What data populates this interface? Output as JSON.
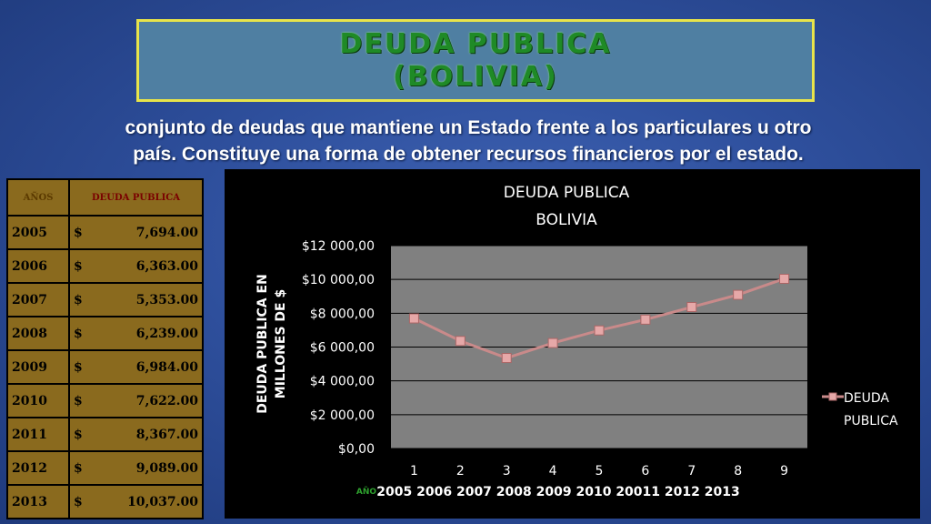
{
  "header": {
    "title_line1": "DEUDA PUBLICA",
    "title_line2": "(BOLIVIA)"
  },
  "description": {
    "line1": "conjunto de deudas que mantiene un Estado frente a los particulares u otro",
    "line2": "país. Constituye una forma de obtener recursos financieros por el estado."
  },
  "table": {
    "headers": [
      "AÑOS",
      "DEUDA PUBLICA"
    ],
    "rows": [
      {
        "year": "2005",
        "currency": "$",
        "amount": "7,694.00"
      },
      {
        "year": "2006",
        "currency": "$",
        "amount": "6,363.00"
      },
      {
        "year": "2007",
        "currency": "$",
        "amount": "5,353.00"
      },
      {
        "year": "2008",
        "currency": "$",
        "amount": "6,239.00"
      },
      {
        "year": "2009",
        "currency": "$",
        "amount": "6,984.00"
      },
      {
        "year": "2010",
        "currency": "$",
        "amount": "7,622.00"
      },
      {
        "year": "2011",
        "currency": "$",
        "amount": "8,367.00"
      },
      {
        "year": "2012",
        "currency": "$",
        "amount": "9,089.00"
      },
      {
        "year": "2013",
        "currency": "$",
        "amount": "10,037.00"
      }
    ]
  },
  "chart_data": {
    "type": "line",
    "title": "DEUDA PUBLICA",
    "subtitle": "BOLIVIA",
    "ylabel_line1": "DEUDA PUBLICA EN",
    "ylabel_line2": "MILLONES DE $",
    "xlabel": "AÑO",
    "x": [
      1,
      2,
      3,
      4,
      5,
      6,
      7,
      8,
      9
    ],
    "x_tick_labels": [
      "1",
      "2",
      "3",
      "4",
      "5",
      "6",
      "7",
      "8",
      "9"
    ],
    "x_category_labels": "2005 2006 2007 2008 2009 2010 20011 2012 2013",
    "y_tick_labels": [
      "$0,00",
      "$2 000,00",
      "$4 000,00",
      "$6 000,00",
      "$8 000,00",
      "$10 000,00",
      "$12 000,00"
    ],
    "ylim": [
      0,
      12000
    ],
    "grid": true,
    "legend_position": "right",
    "series": [
      {
        "name_line1": "DEUDA",
        "name_line2": "PUBLICA",
        "values": [
          7694,
          6363,
          5353,
          6239,
          6984,
          7622,
          8367,
          9089,
          10037
        ]
      }
    ],
    "colors": {
      "line": "#c98a8a",
      "marker": "#e6a8a8",
      "plot_bg": "#808080",
      "grid": "#000000"
    }
  }
}
